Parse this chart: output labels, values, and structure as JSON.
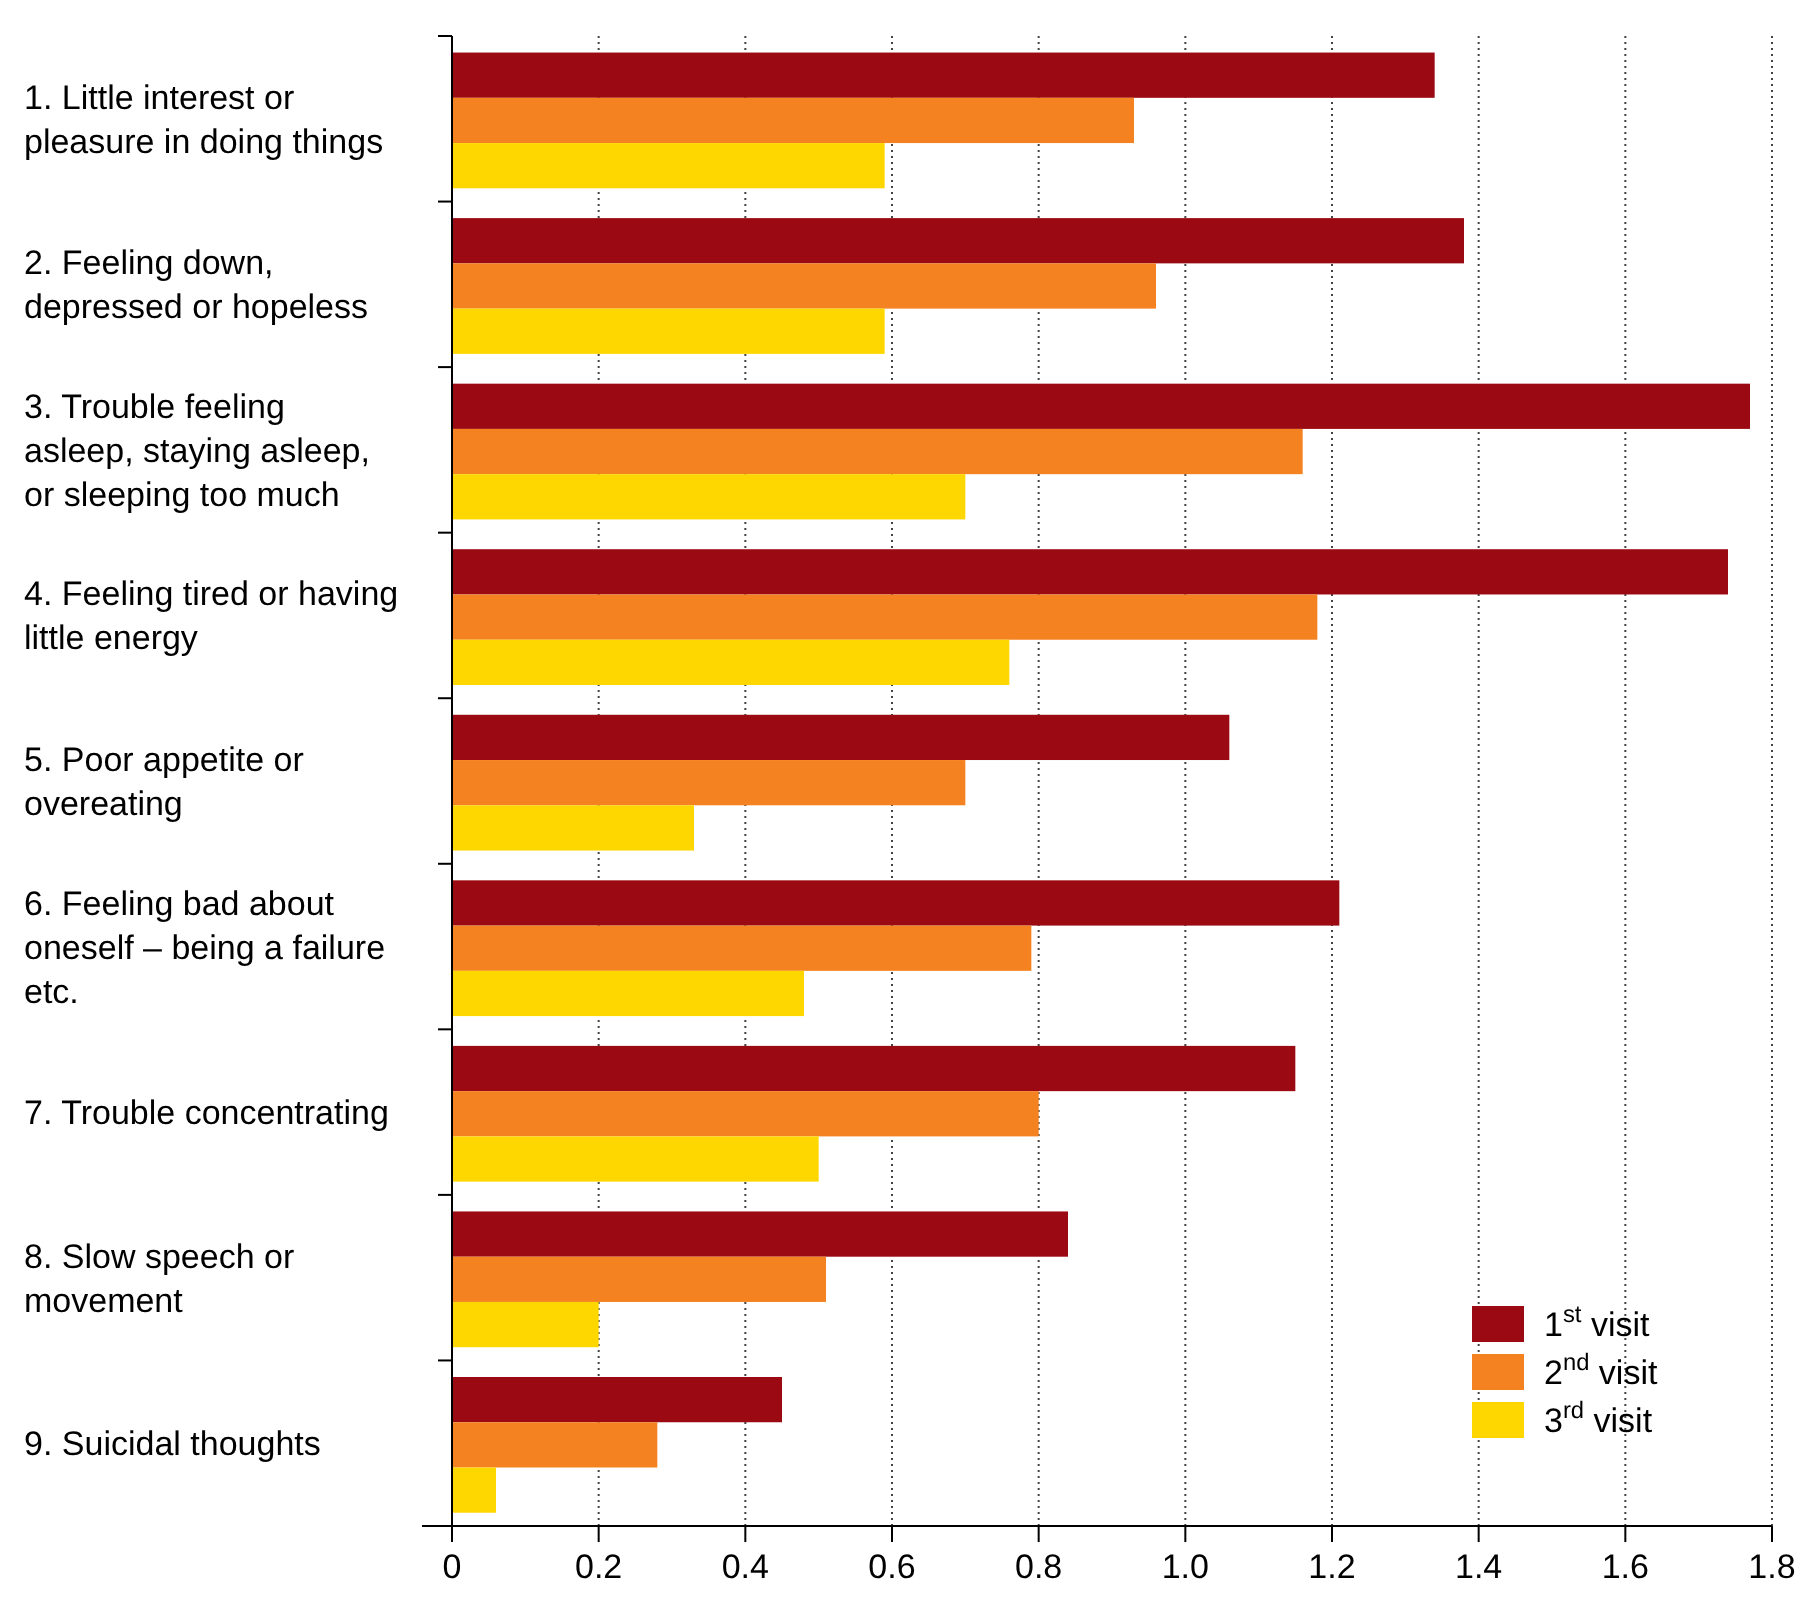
{
  "chart_data": {
    "type": "bar",
    "orientation": "horizontal",
    "categories": [
      "1. Little interest or pleasure in doing things",
      "2. Feeling down, depressed or hopeless",
      "3. Trouble feeling asleep, staying asleep, or sleeping too much",
      "4. Feeling tired or having little energy",
      "5. Poor appetite or overeating",
      "6. Feeling bad about oneself – being a failure etc.",
      "7. Trouble concentrating",
      "8. Slow speech or movement",
      "9. Suicidal thoughts"
    ],
    "series": [
      {
        "name": "1$^{st}$ visit",
        "color": "#9b0a12",
        "values": [
          1.34,
          1.38,
          1.77,
          1.74,
          1.06,
          1.21,
          1.15,
          0.84,
          0.45
        ]
      },
      {
        "name": "2$^{nd}$ visit",
        "color": "#f58220",
        "values": [
          0.93,
          0.96,
          1.16,
          1.18,
          0.7,
          0.79,
          0.8,
          0.51,
          0.28
        ]
      },
      {
        "name": "3$^{rd}$ visit",
        "color": "#ffd700",
        "values": [
          0.59,
          0.59,
          0.7,
          0.76,
          0.33,
          0.48,
          0.5,
          0.2,
          0.06
        ]
      }
    ],
    "xlim": [
      0,
      1.8
    ],
    "xticks": [
      0,
      0.2,
      0.4,
      0.6,
      0.8,
      {
        "value": 1,
        "label": "1.0"
      },
      1.2,
      1.4,
      1.6,
      1.8
    ],
    "grid": "x",
    "legend": "bottom right"
  }
}
